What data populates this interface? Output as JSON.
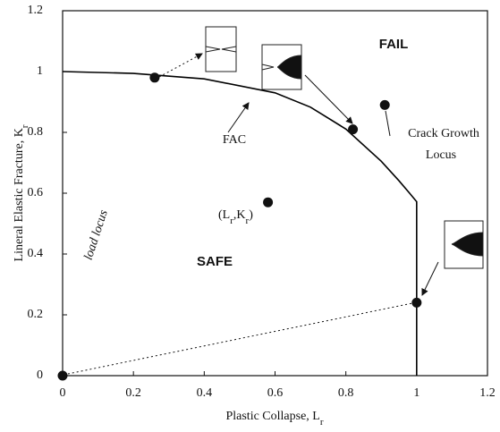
{
  "chart_data": {
    "type": "line",
    "x_label": {
      "text": "Plastic Collapse, L",
      "sub": "r"
    },
    "y_label": {
      "text": "Lineral Elastic Fracture, K",
      "sub": "r"
    },
    "xlim": [
      0,
      1.2
    ],
    "ylim": [
      0,
      1.2
    ],
    "xticks": [
      0,
      0.2,
      0.4,
      0.6,
      0.8,
      1,
      1.2
    ],
    "yticks": [
      0,
      0.2,
      0.4,
      0.6,
      0.8,
      1,
      1.2
    ],
    "series": [
      {
        "name": "FAC",
        "color": "#000000",
        "x": [
          0,
          0.2,
          0.4,
          0.6,
          0.7,
          0.8,
          0.9,
          0.95,
          0.98,
          1,
          1
        ],
        "values": [
          1,
          0.994,
          0.976,
          0.93,
          0.883,
          0.811,
          0.705,
          0.641,
          0.6,
          0.572,
          0
        ]
      }
    ],
    "points": {
      "x": [
        0,
        0.26,
        0.82,
        0.91,
        0.58,
        1
      ],
      "values": [
        0,
        0.98,
        0.81,
        0.89,
        0.57,
        0.24
      ]
    },
    "annotations": {
      "fail": "FAIL",
      "safe": "SAFE",
      "fac": "FAC",
      "crack_growth": "Crack Growth",
      "locus": "Locus",
      "load_locus": "load locus",
      "point_label": [
        {
          "text": "(L"
        },
        {
          "sub": "r"
        },
        {
          "text": ",K"
        },
        {
          "sub": "r"
        },
        {
          "text": ")"
        }
      ]
    }
  }
}
